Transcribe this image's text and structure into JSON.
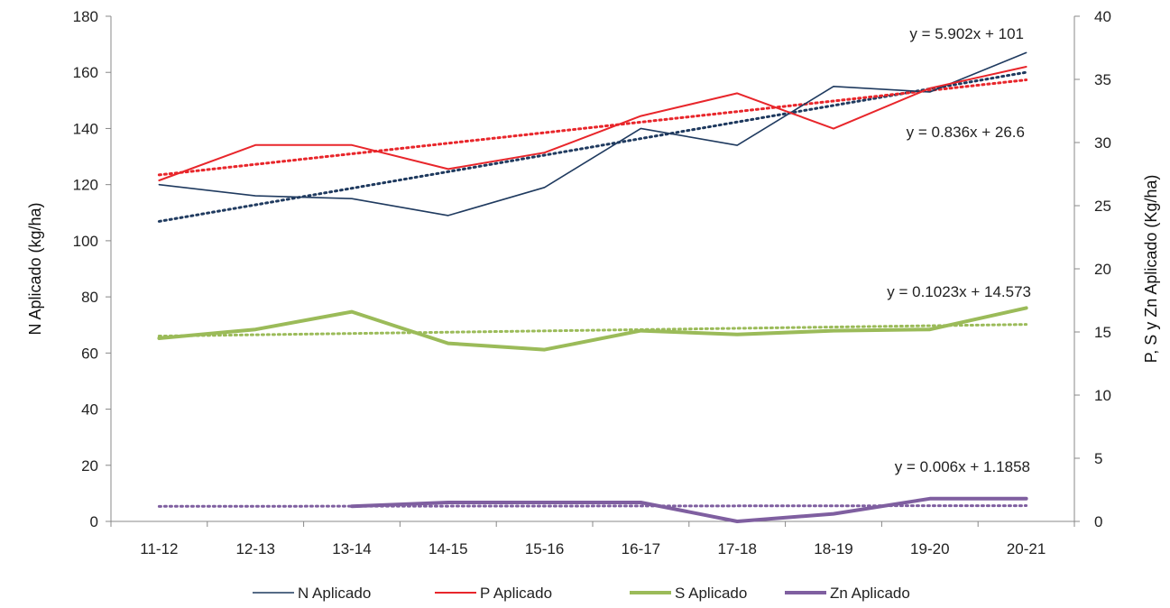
{
  "chart_data": {
    "type": "line",
    "categories": [
      "11-12",
      "12-13",
      "13-14",
      "14-15",
      "15-16",
      "16-17",
      "17-18",
      "18-19",
      "19-20",
      "20-21"
    ],
    "ylabel_left": "N Aplicado (kg/ha)",
    "ylabel_right": "P, S y Zn Aplicado (Kg/ha)",
    "ylim_left": [
      0,
      180
    ],
    "yticks_left": [
      "0",
      "20",
      "40",
      "60",
      "80",
      "100",
      "120",
      "140",
      "160",
      "180"
    ],
    "ylim_right": [
      0,
      40
    ],
    "yticks_right": [
      "0",
      "5",
      "10",
      "15",
      "20",
      "25",
      "30",
      "35",
      "40"
    ],
    "grid": false,
    "legend_position": "bottom",
    "series": [
      {
        "name": "N Aplicado",
        "axis": "left",
        "color": "#1f3a5f",
        "width": 1.6,
        "values": [
          120,
          116,
          115,
          109,
          119,
          140,
          134,
          155,
          153,
          167
        ]
      },
      {
        "name": "P Aplicado",
        "axis": "right",
        "color": "#e8262b",
        "width": 2,
        "values": [
          27,
          29.8,
          29.8,
          27.9,
          29.2,
          32.1,
          33.9,
          31.1,
          34.3,
          36
        ]
      },
      {
        "name": "S Aplicado",
        "axis": "right",
        "color": "#9bbb59",
        "width": 4,
        "values": [
          14.5,
          15.2,
          16.6,
          14.1,
          13.6,
          15.1,
          14.8,
          15.1,
          15.2,
          16.9
        ]
      },
      {
        "name": "Zn Aplicado",
        "axis": "right",
        "color": "#7f5fa0",
        "width": 4,
        "values": [
          null,
          null,
          1.2,
          1.5,
          1.5,
          1.5,
          0,
          0.6,
          1.8,
          1.8
        ]
      }
    ],
    "trendlines": [
      {
        "series": "N Aplicado",
        "axis": "left",
        "color": "#1f3a5f",
        "equation": "y = 5.902x + 101",
        "slope": 5.902,
        "intercept": 101
      },
      {
        "series": "P Aplicado",
        "axis": "right",
        "color": "#e8262b",
        "equation": "y = 0.836x + 26.6",
        "slope": 0.836,
        "intercept": 26.6
      },
      {
        "series": "S Aplicado",
        "axis": "right",
        "color": "#9bbb59",
        "equation": "y = 0.1023x + 14.573",
        "slope": 0.1023,
        "intercept": 14.573
      },
      {
        "series": "Zn Aplicado",
        "axis": "right",
        "color": "#7f5fa0",
        "equation": "y = 0.006x + 1.1858",
        "slope": 0.006,
        "intercept": 1.1858
      }
    ]
  }
}
